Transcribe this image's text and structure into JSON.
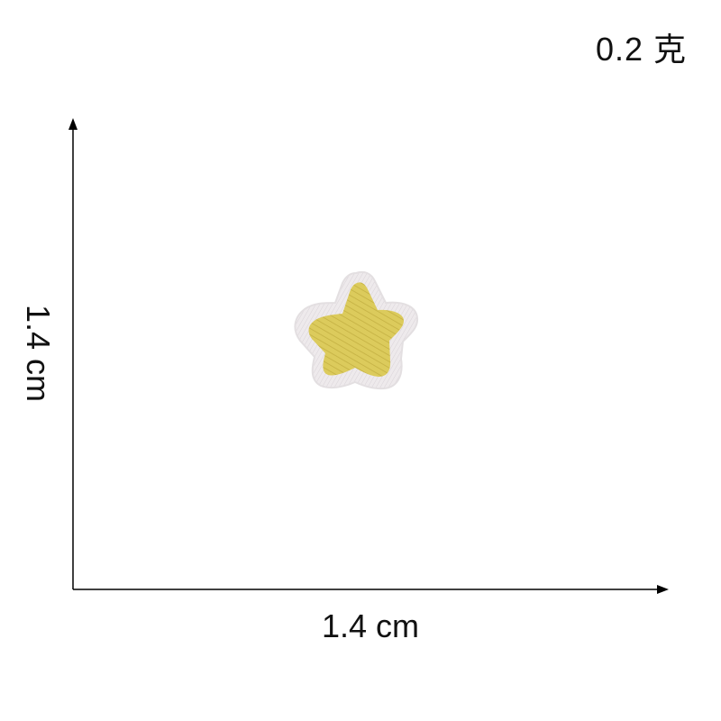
{
  "weight": "0.2 克",
  "dimensions": {
    "width": "1.4 cm",
    "height": "1.4 cm"
  },
  "product": {
    "icon": "embroidered-star-patch",
    "fill_color": "#d9c85a",
    "border_color": "#ece8ea"
  }
}
